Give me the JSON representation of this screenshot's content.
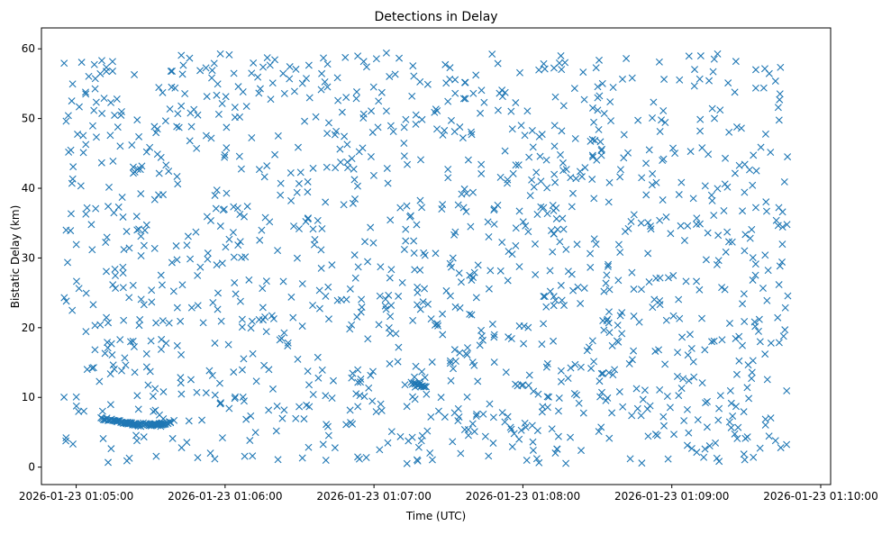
{
  "chart_data": {
    "type": "scatter",
    "title": "Detections in Delay",
    "xlabel": "Time (UTC)",
    "ylabel": "Bistatic Delay (km)",
    "x_range": [
      "2026-01-23 01:04:46",
      "2026-01-23 01:10:04"
    ],
    "ylim": [
      -2.5,
      63
    ],
    "x_ticks": [
      "2026-01-23 01:05:00",
      "2026-01-23 01:06:00",
      "2026-01-23 01:07:00",
      "2026-01-23 01:08:00",
      "2026-01-23 01:09:00",
      "2026-01-23 01:10:00"
    ],
    "y_ticks": [
      0,
      10,
      20,
      30,
      40,
      50,
      60
    ],
    "grid": false,
    "marker": "x",
    "color": "#1f77b4",
    "series_start": "2026-01-23 01:04:55",
    "series_end": "2026-01-23 01:09:47",
    "delay_range_km": [
      0.5,
      59.8
    ],
    "point_count": 1300,
    "dense_tracks": [
      {
        "time_start": "2026-01-23 01:05:10",
        "time_end": "2026-01-23 01:05:26",
        "delay_start_km": 7.0,
        "delay_end_km": 6.0
      },
      {
        "time_start": "2026-01-23 01:05:20",
        "time_end": "2026-01-23 01:05:35",
        "delay_start_km": 6.3,
        "delay_end_km": 6.0
      },
      {
        "time_start": "2026-01-23 01:05:31",
        "time_end": "2026-01-23 01:05:38",
        "delay_start_km": 6.0,
        "delay_end_km": 6.4
      },
      {
        "time_start": "2026-01-23 01:07:15",
        "time_end": "2026-01-23 01:07:21",
        "delay_start_km": 12.0,
        "delay_end_km": 11.6
      }
    ]
  }
}
